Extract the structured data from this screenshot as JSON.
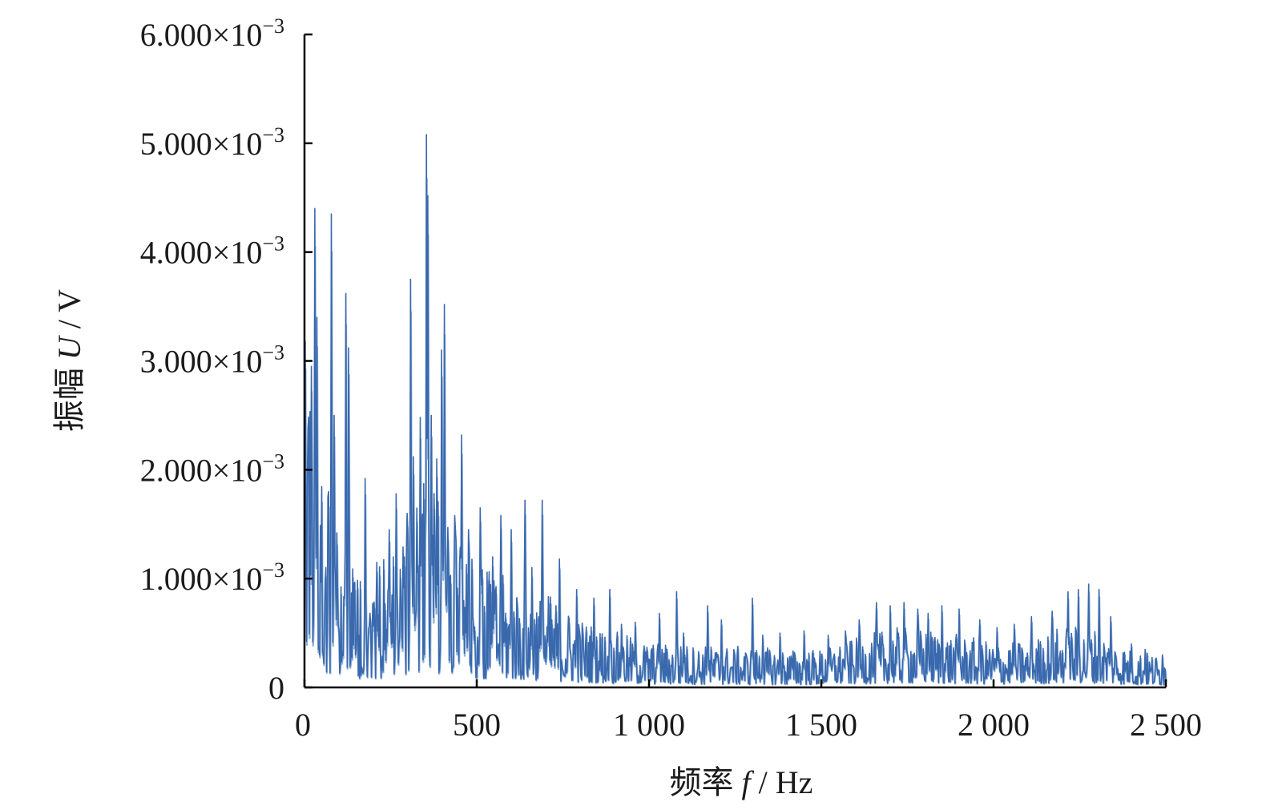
{
  "chart_data": {
    "type": "line",
    "title": "",
    "xlabel": "频率 f / Hz",
    "ylabel": "振幅 U / V",
    "xlabel_parts": {
      "prefix": "频率 ",
      "var": "f",
      "suffix": " / Hz"
    },
    "ylabel_parts": {
      "prefix": "振幅 ",
      "var": "U",
      "suffix": " / V"
    },
    "xlim": [
      0,
      2500
    ],
    "ylim": [
      0,
      0.006
    ],
    "x_ticks": [
      0,
      500,
      1000,
      1500,
      2000,
      2500
    ],
    "x_tick_labels": [
      "0",
      "500",
      "1 000",
      "1 500",
      "2 000",
      "2 500"
    ],
    "y_ticks": [
      0,
      0.001,
      0.002,
      0.003,
      0.004,
      0.005,
      0.006
    ],
    "y_tick_labels": [
      {
        "mantissa": "0",
        "exponent": ""
      },
      {
        "mantissa": "1.000×10",
        "exponent": "−3"
      },
      {
        "mantissa": "2.000×10",
        "exponent": "−3"
      },
      {
        "mantissa": "3.000×10",
        "exponent": "−3"
      },
      {
        "mantissa": "4.000×10",
        "exponent": "−3"
      },
      {
        "mantissa": "5.000×10",
        "exponent": "−3"
      },
      {
        "mantissa": "6.000×10",
        "exponent": "−3"
      }
    ],
    "grid": false,
    "legend": "none",
    "series": [
      {
        "color": "#3a68ad",
        "sample_spacing_hz": 2,
        "envelope": [
          [
            0,
            0.0018
          ],
          [
            50,
            0.0013
          ],
          [
            100,
            0.0009
          ],
          [
            150,
            0.0007
          ],
          [
            200,
            0.0007
          ],
          [
            250,
            0.0008
          ],
          [
            300,
            0.001
          ],
          [
            350,
            0.0012
          ],
          [
            400,
            0.0011
          ],
          [
            450,
            0.0009
          ],
          [
            500,
            0.0007
          ],
          [
            600,
            0.00062
          ],
          [
            700,
            0.00055
          ],
          [
            800,
            0.0004
          ],
          [
            900,
            0.00032
          ],
          [
            1000,
            0.00026
          ],
          [
            1200,
            0.00024
          ],
          [
            1400,
            0.00022
          ],
          [
            1500,
            0.00022
          ],
          [
            1600,
            0.00028
          ],
          [
            1700,
            0.00034
          ],
          [
            1800,
            0.00034
          ],
          [
            1900,
            0.0003
          ],
          [
            2000,
            0.00026
          ],
          [
            2100,
            0.00026
          ],
          [
            2200,
            0.00036
          ],
          [
            2300,
            0.00034
          ],
          [
            2400,
            0.00022
          ],
          [
            2500,
            0.00018
          ]
        ],
        "peaks": [
          [
            2,
            0.00318
          ],
          [
            10,
            0.00238
          ],
          [
            20,
            0.00295
          ],
          [
            30,
            0.0044
          ],
          [
            36,
            0.0034
          ],
          [
            70,
            0.0018
          ],
          [
            78,
            0.00435
          ],
          [
            85,
            0.0025
          ],
          [
            120,
            0.00362
          ],
          [
            128,
            0.00312
          ],
          [
            175,
            0.00192
          ],
          [
            210,
            0.00115
          ],
          [
            245,
            0.00145
          ],
          [
            265,
            0.00178
          ],
          [
            290,
            0.0012
          ],
          [
            308,
            0.00375
          ],
          [
            316,
            0.00212
          ],
          [
            335,
            0.00248
          ],
          [
            353,
            0.00508
          ],
          [
            357,
            0.00452
          ],
          [
            368,
            0.0025
          ],
          [
            384,
            0.0021
          ],
          [
            398,
            0.0031
          ],
          [
            405,
            0.00352
          ],
          [
            435,
            0.00158
          ],
          [
            455,
            0.00232
          ],
          [
            475,
            0.00145
          ],
          [
            510,
            0.00165
          ],
          [
            545,
            0.0012
          ],
          [
            570,
            0.00158
          ],
          [
            600,
            0.00145
          ],
          [
            640,
            0.00172
          ],
          [
            660,
            0.0011
          ],
          [
            690,
            0.00172
          ],
          [
            740,
            0.00118
          ],
          [
            790,
            0.0009
          ],
          [
            840,
            0.00082
          ],
          [
            885,
            0.0009
          ],
          [
            920,
            0.00058
          ],
          [
            960,
            0.0006
          ],
          [
            1030,
            0.00068
          ],
          [
            1080,
            0.00088
          ],
          [
            1100,
            0.0005
          ],
          [
            1170,
            0.00075
          ],
          [
            1210,
            0.00062
          ],
          [
            1300,
            0.00082
          ],
          [
            1330,
            0.00048
          ],
          [
            1380,
            0.0005
          ],
          [
            1450,
            0.00052
          ],
          [
            1520,
            0.00048
          ],
          [
            1570,
            0.00052
          ],
          [
            1610,
            0.00062
          ],
          [
            1660,
            0.00078
          ],
          [
            1700,
            0.00075
          ],
          [
            1740,
            0.00078
          ],
          [
            1780,
            0.00072
          ],
          [
            1810,
            0.00068
          ],
          [
            1850,
            0.00075
          ],
          [
            1900,
            0.00072
          ],
          [
            1960,
            0.00062
          ],
          [
            2010,
            0.00055
          ],
          [
            2060,
            0.00058
          ],
          [
            2110,
            0.00065
          ],
          [
            2170,
            0.0007
          ],
          [
            2215,
            0.00088
          ],
          [
            2245,
            0.0009
          ],
          [
            2275,
            0.00095
          ],
          [
            2305,
            0.0009
          ],
          [
            2340,
            0.00065
          ],
          [
            2400,
            0.0004
          ],
          [
            2440,
            0.00035
          ],
          [
            2490,
            0.0003
          ]
        ]
      }
    ]
  }
}
